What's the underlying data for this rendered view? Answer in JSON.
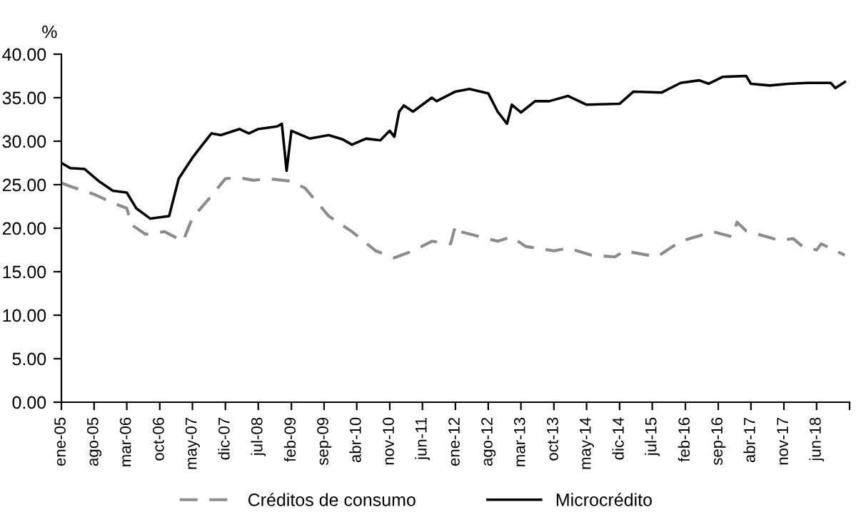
{
  "chart_data": {
    "type": "line",
    "ylabel": "%",
    "xlim": [
      "2005-01",
      "2019-01"
    ],
    "xticks": [
      {
        "value": "2005-01",
        "label": "ene-05"
      },
      {
        "value": "2005-08",
        "label": "ago-05"
      },
      {
        "value": "2006-03",
        "label": "mar-06"
      },
      {
        "value": "2006-10",
        "label": "oct-06"
      },
      {
        "value": "2007-05",
        "label": "may-07"
      },
      {
        "value": "2007-12",
        "label": "dic-07"
      },
      {
        "value": "2008-07",
        "label": "jul-08"
      },
      {
        "value": "2009-02",
        "label": "feb-09"
      },
      {
        "value": "2009-09",
        "label": "sep-09"
      },
      {
        "value": "2010-04",
        "label": "abr-10"
      },
      {
        "value": "2010-11",
        "label": "nov-10"
      },
      {
        "value": "2011-06",
        "label": "jun-11"
      },
      {
        "value": "2012-01",
        "label": "ene-12"
      },
      {
        "value": "2012-08",
        "label": "ago-12"
      },
      {
        "value": "2013-03",
        "label": "mar-13"
      },
      {
        "value": "2013-10",
        "label": "oct-13"
      },
      {
        "value": "2014-05",
        "label": "may-14"
      },
      {
        "value": "2014-12",
        "label": "dic-14"
      },
      {
        "value": "2015-07",
        "label": "jul-15"
      },
      {
        "value": "2016-02",
        "label": "feb-16"
      },
      {
        "value": "2016-09",
        "label": "sep-16"
      },
      {
        "value": "2017-04",
        "label": "abr-17"
      },
      {
        "value": "2017-11",
        "label": "nov-17"
      },
      {
        "value": "2018-06",
        "label": "jun-18"
      },
      {
        "value": "2019-01",
        "label": null
      }
    ],
    "ylim": [
      0,
      40
    ],
    "yticks": [
      {
        "value": 0,
        "label": "0.00"
      },
      {
        "value": 5,
        "label": "5.00"
      },
      {
        "value": 10,
        "label": "10.00"
      },
      {
        "value": 15,
        "label": "15.00"
      },
      {
        "value": 20,
        "label": "20.00"
      },
      {
        "value": 25,
        "label": "25.00"
      },
      {
        "value": 30,
        "label": "30.00"
      },
      {
        "value": 35,
        "label": "35.00"
      },
      {
        "value": 40,
        "label": "40.00"
      }
    ],
    "grid": false,
    "legend": "bottom",
    "marker": "none",
    "series": [
      {
        "name": "Créditos de consumo",
        "color": "#8c8c8c",
        "line_style": "dashed",
        "x": [
          "2005-01",
          "2005-03",
          "2005-08",
          "2005-12",
          "2006-03",
          "2006-04",
          "2006-07",
          "2006-11",
          "2007-03",
          "2007-05",
          "2007-09",
          "2007-12",
          "2008-03",
          "2008-06",
          "2008-09",
          "2009-02",
          "2009-05",
          "2009-10",
          "2010-03",
          "2010-08",
          "2010-12",
          "2011-04",
          "2011-08",
          "2011-12",
          "2012-01",
          "2012-02",
          "2012-05",
          "2012-10",
          "2013-01",
          "2013-04",
          "2013-10",
          "2014-01",
          "2014-06",
          "2014-11",
          "2015-01",
          "2015-08",
          "2016-01",
          "2016-08",
          "2016-12",
          "2017-01",
          "2017-03",
          "2017-10",
          "2018-01",
          "2018-03",
          "2018-06",
          "2018-07",
          "2018-12"
        ],
        "values": [
          25.2,
          24.8,
          23.9,
          22.9,
          22.3,
          20.4,
          19.3,
          19.6,
          18.5,
          21.2,
          23.7,
          25.7,
          25.8,
          25.5,
          25.7,
          25.4,
          24.6,
          21.4,
          19.6,
          17.4,
          16.6,
          17.4,
          18.5,
          18.2,
          20.3,
          19.6,
          19.2,
          18.5,
          19.0,
          17.9,
          17.4,
          17.7,
          16.9,
          16.7,
          17.4,
          16.7,
          18.5,
          19.6,
          19.0,
          20.7,
          19.7,
          18.6,
          18.8,
          17.9,
          17.5,
          18.2,
          16.9
        ]
      },
      {
        "name": "Microcrédito",
        "color": "#000000",
        "line_style": "solid",
        "x": [
          "2005-01",
          "2005-03",
          "2005-06",
          "2005-09",
          "2005-12",
          "2006-03",
          "2006-05",
          "2006-08",
          "2006-12",
          "2007-02",
          "2007-05",
          "2007-07",
          "2007-09",
          "2007-11",
          "2008-03",
          "2008-05",
          "2008-07",
          "2008-11",
          "2008-12",
          "2009-01",
          "2009-02",
          "2009-06",
          "2009-10",
          "2010-01",
          "2010-03",
          "2010-06",
          "2010-09",
          "2010-11",
          "2010-12",
          "2011-01",
          "2011-02",
          "2011-04",
          "2011-06",
          "2011-08",
          "2011-09",
          "2012-01",
          "2012-04",
          "2012-08",
          "2012-10",
          "2012-12",
          "2013-01",
          "2013-03",
          "2013-06",
          "2013-09",
          "2014-01",
          "2014-05",
          "2014-12",
          "2015-03",
          "2015-09",
          "2016-01",
          "2016-05",
          "2016-07",
          "2016-10",
          "2017-03",
          "2017-04",
          "2017-08",
          "2017-12",
          "2018-04",
          "2018-09",
          "2018-10",
          "2018-12"
        ],
        "values": [
          27.5,
          26.9,
          26.8,
          25.4,
          24.3,
          24.1,
          22.3,
          21.1,
          21.4,
          25.7,
          28.1,
          29.5,
          30.9,
          30.7,
          31.4,
          30.9,
          31.4,
          31.7,
          32.0,
          26.6,
          31.2,
          30.3,
          30.7,
          30.2,
          29.6,
          30.3,
          30.1,
          31.2,
          30.5,
          33.4,
          34.1,
          33.4,
          34.2,
          35.0,
          34.6,
          35.7,
          36.0,
          35.5,
          33.4,
          32.0,
          34.2,
          33.3,
          34.6,
          34.6,
          35.2,
          34.2,
          34.3,
          35.7,
          35.6,
          36.7,
          37.0,
          36.6,
          37.4,
          37.5,
          36.6,
          36.4,
          36.6,
          36.7,
          36.7,
          36.1,
          36.8
        ]
      }
    ]
  }
}
